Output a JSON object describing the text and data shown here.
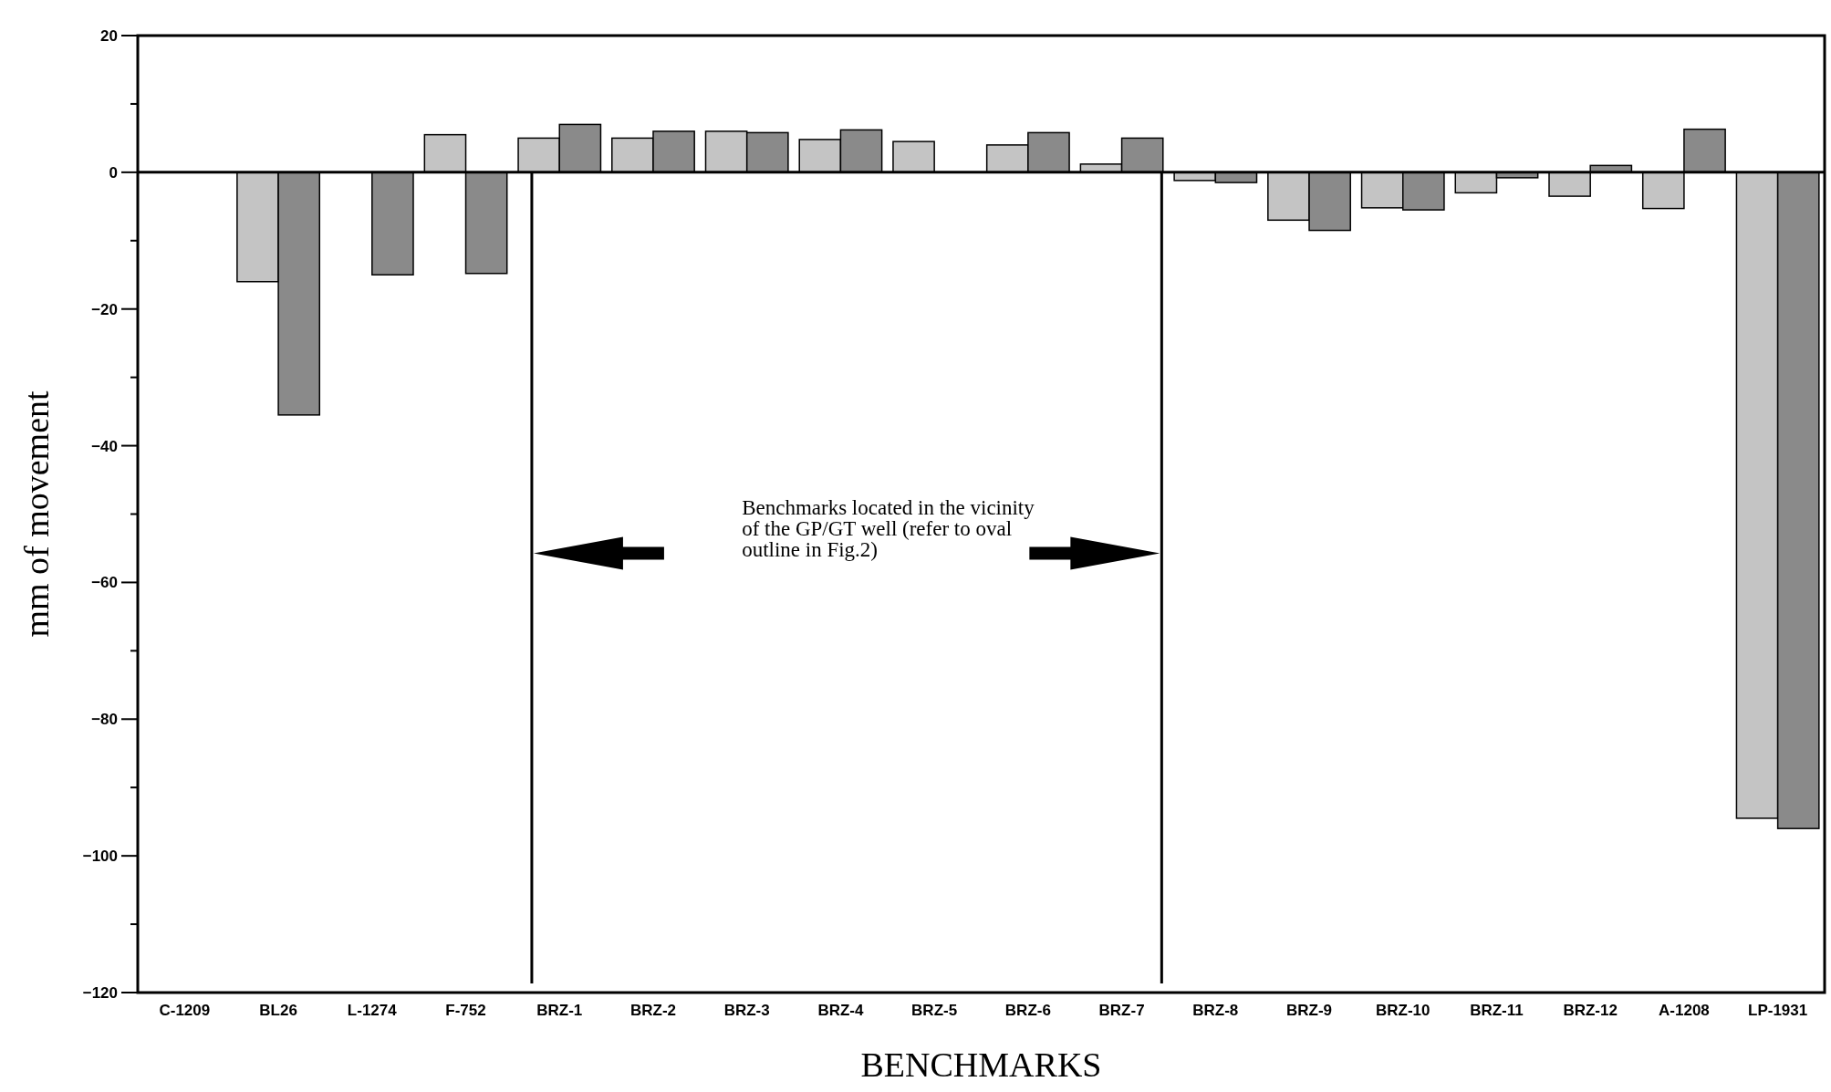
{
  "chart_data": {
    "type": "bar",
    "xlabel": "BENCHMARKS",
    "ylabel": "mm of movement",
    "categories": [
      "C-1209",
      "BL26",
      "L-1274",
      "F-752",
      "BRZ-1",
      "BRZ-2",
      "BRZ-3",
      "BRZ-4",
      "BRZ-5",
      "BRZ-6",
      "BRZ-7",
      "BRZ-8",
      "BRZ-9",
      "BRZ-10",
      "BRZ-11",
      "BRZ-12",
      "A-1208",
      "LP-1931"
    ],
    "series": [
      {
        "color": "#c4c4c4",
        "values": [
          null,
          -16,
          null,
          5.5,
          5,
          5,
          6,
          4.8,
          4.5,
          4,
          1.2,
          -1.2,
          -7,
          -5.2,
          -3,
          -3.5,
          -5.3,
          -94.5
        ]
      },
      {
        "color": "#8a8a8a",
        "values": [
          null,
          -35.5,
          -15,
          -14.8,
          7,
          6,
          5.8,
          6.2,
          null,
          5.8,
          5,
          -1.5,
          -8.5,
          -5.5,
          -0.8,
          1,
          6.3,
          -96
        ]
      }
    ],
    "ylim": [
      -120,
      20
    ],
    "yticks": [
      -120,
      {
        "value": -110,
        "label": null
      },
      -100,
      {
        "value": -90,
        "label": null
      },
      -80,
      {
        "value": -70,
        "label": null
      },
      -60,
      {
        "value": -50,
        "label": null
      },
      -40,
      {
        "value": -30,
        "label": null
      },
      -20,
      {
        "value": -10,
        "label": null
      },
      0,
      {
        "value": 10,
        "label": null
      },
      20
    ],
    "annotations": [
      "Benchmarks located in the vicinity of  the GP/GT well (refer to oval outline in Fig.2)"
    ],
    "ref_lines": [
      {
        "axis": "y",
        "value": 0
      }
    ],
    "grid": false
  }
}
